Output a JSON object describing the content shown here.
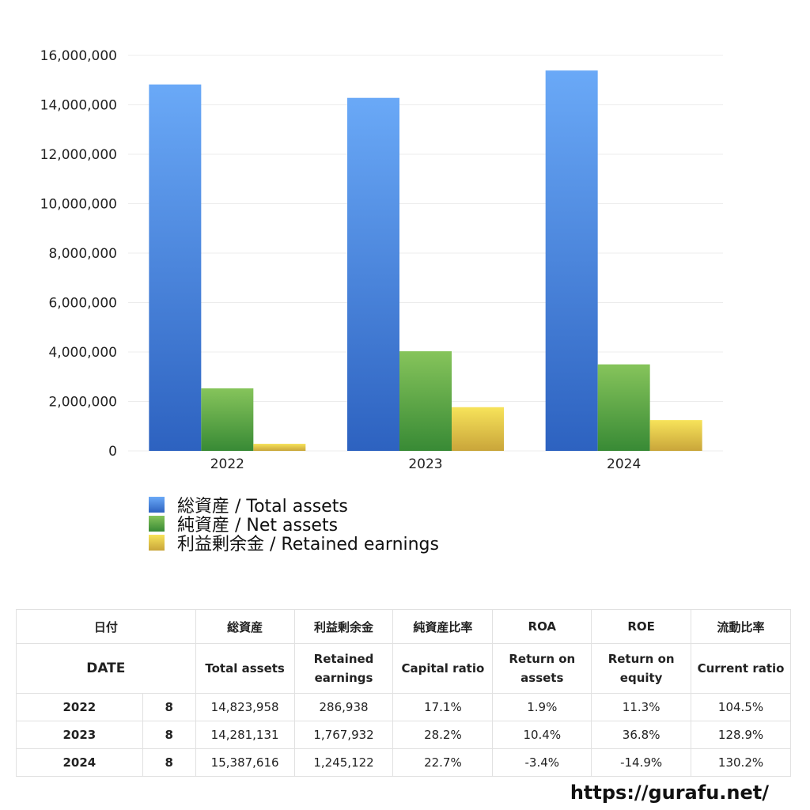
{
  "chart_data": {
    "type": "bar",
    "categories": [
      "2022",
      "2023",
      "2024"
    ],
    "series": [
      {
        "name": "総資産 / Total assets",
        "values": [
          14823958,
          14281131,
          15387616
        ],
        "color_top": "#6aa9f7",
        "color_bottom": "#2d62c0"
      },
      {
        "name": "純資産 / Net assets",
        "values": [
          2530000,
          4030000,
          3500000
        ],
        "color_top": "#86c45b",
        "color_bottom": "#388a35"
      },
      {
        "name": "利益剰余金 / Retained earnings",
        "values": [
          286938,
          1767932,
          1245122
        ],
        "color_top": "#f7e35a",
        "color_bottom": "#c9a53a"
      }
    ],
    "ylim": [
      0,
      16000000
    ],
    "yticks": [
      0,
      2000000,
      4000000,
      6000000,
      8000000,
      10000000,
      12000000,
      14000000,
      16000000
    ],
    "ytick_labels": [
      "0",
      "2,000,000",
      "4,000,000",
      "6,000,000",
      "8,000,000",
      "10,000,000",
      "12,000,000",
      "14,000,000",
      "16,000,000"
    ],
    "grid": true,
    "legend_position": "bottom-left"
  },
  "table": {
    "header_jp": {
      "date": "日付",
      "total_assets": "総資産",
      "retained": "利益剰余金",
      "capital_ratio": "純資産比率",
      "roa": "ROA",
      "roe": "ROE",
      "current_ratio": "流動比率"
    },
    "header_en": {
      "date": "DATE",
      "total_assets": "Total assets",
      "retained": "Retained earnings",
      "capital_ratio": "Capital ratio",
      "roa": "Return on assets",
      "roe": "Return on equity",
      "current_ratio": "Current ratio"
    },
    "rows": [
      {
        "year": "2022",
        "month": "8",
        "total_assets": "14,823,958",
        "retained": "286,938",
        "capital_ratio": "17.1%",
        "roa": "1.9%",
        "roe": "11.3%",
        "current_ratio": "104.5%"
      },
      {
        "year": "2023",
        "month": "8",
        "total_assets": "14,281,131",
        "retained": "1,767,932",
        "capital_ratio": "28.2%",
        "roa": "10.4%",
        "roe": "36.8%",
        "current_ratio": "128.9%"
      },
      {
        "year": "2024",
        "month": "8",
        "total_assets": "15,387,616",
        "retained": "1,245,122",
        "capital_ratio": "22.7%",
        "roa": "-3.4%",
        "roe": "-14.9%",
        "current_ratio": "130.2%"
      }
    ]
  },
  "site_url": "https://gurafu.net/"
}
